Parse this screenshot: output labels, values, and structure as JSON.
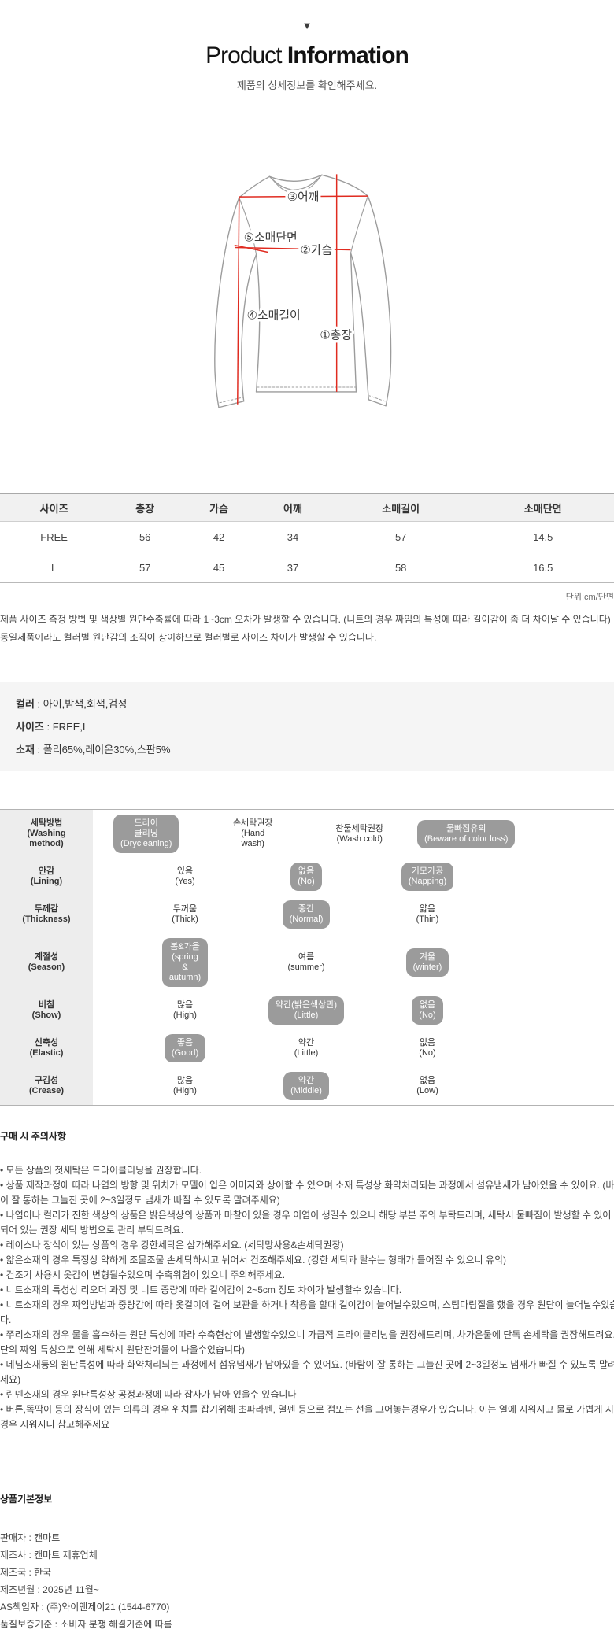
{
  "colors": {
    "measure_line_red": "#e02b20",
    "outline_gray": "#9c9c9c",
    "badge_gray": "#9b9b9b",
    "attr_panel_gray": "#f5f5f5",
    "care_label_gray": "#ededed",
    "table_header_gray": "#f1f1f1"
  },
  "header": {
    "arrow_icon": "▼",
    "title_light": "Product",
    "title_bold": "Information",
    "subtitle": "제품의 상세정보를 확인해주세요."
  },
  "diagram": {
    "labels": {
      "length": "①총장",
      "chest": "②가슴",
      "shoulder": "③어깨",
      "sleeve_length": "④소매길이",
      "sleeve_cuff": "⑤소매단면"
    }
  },
  "size_table": {
    "headers": [
      "사이즈",
      "총장",
      "가슴",
      "어깨",
      "소매길이",
      "소매단면"
    ],
    "rows": [
      [
        "FREE",
        "56",
        "42",
        "34",
        "57",
        "14.5"
      ],
      [
        "L",
        "57",
        "45",
        "37",
        "58",
        "16.5"
      ]
    ],
    "unit_note": "단위:cm/단면"
  },
  "size_notes": [
    "제품 사이즈 측정 방법 및 색상별 원단수축률에 따라 1~3cm 오차가 발생할 수 있습니다. (니트의 경우 짜임의 특성에 따라 길이감이 좀 더 차이날 수 있습니다)",
    "동일제품이라도 컬러별 원단감의 조직이 상이하므로 컬러별로 사이즈 차이가 발생할 수 있습니다."
  ],
  "product_attrs": {
    "sep": " : ",
    "color_label": "컬러",
    "color_value": "아이,밤색,회색,검정",
    "size_label": "사이즈",
    "size_value": "FREE,L",
    "fabric_label": "소재",
    "fabric_value": "폴리65%,레이온30%,스판5%"
  },
  "care_table": {
    "rows": [
      {
        "label": "세탁방법\n(Washing\nmethod)",
        "options": [
          {
            "text": "드라이\n클리닝\n(Drycleaning)",
            "selected": true
          },
          {
            "text": "손세탁권장\n(Hand\nwash)",
            "selected": false
          },
          {
            "text": "찬물세탁권장\n(Wash cold)",
            "selected": false
          },
          {
            "text": "물빠짐유의\n(Beware of color loss)",
            "selected": true
          }
        ]
      },
      {
        "label": "안감\n(Lining)",
        "options": [
          {
            "text": "있음\n(Yes)",
            "selected": false
          },
          {
            "text": "없음\n(No)",
            "selected": true
          },
          {
            "text": "기모가공\n(Napping)",
            "selected": true
          }
        ]
      },
      {
        "label": "두께감\n(Thickness)",
        "options": [
          {
            "text": "두꺼움\n(Thick)",
            "selected": false
          },
          {
            "text": "중간\n(Normal)",
            "selected": true
          },
          {
            "text": "얇음\n(Thin)",
            "selected": false
          }
        ]
      },
      {
        "label": "계절성\n(Season)",
        "options": [
          {
            "text": "봄&가을\n(spring\n&\nautumn)",
            "selected": true
          },
          {
            "text": "여름\n(summer)",
            "selected": false
          },
          {
            "text": "겨울\n(winter)",
            "selected": true
          }
        ]
      },
      {
        "label": "비침\n(Show)",
        "options": [
          {
            "text": "많음\n(High)",
            "selected": false
          },
          {
            "text": "약간(밝은색상만)\n(Little)",
            "selected": true
          },
          {
            "text": "없음\n(No)",
            "selected": true
          }
        ]
      },
      {
        "label": "신축성\n(Elastic)",
        "options": [
          {
            "text": "좋음\n(Good)",
            "selected": true
          },
          {
            "text": "약간\n(Little)",
            "selected": false
          },
          {
            "text": "없음\n(No)",
            "selected": false
          }
        ]
      },
      {
        "label": "구김성\n(Crease)",
        "options": [
          {
            "text": "많음\n(High)",
            "selected": false
          },
          {
            "text": "약간\n(Middle)",
            "selected": true
          },
          {
            "text": "없음\n(Low)",
            "selected": false
          }
        ]
      }
    ]
  },
  "purchase_notice": {
    "heading": "구매 시 주의사항",
    "bullet": "•",
    "items": [
      "모든 상품의 첫세탁은 드라이클리닝을 권장합니다.",
      "상품 제작과정에 따라 나염의 방향 및 위치가 모델이 입은 이미지와 상이할 수 있으며 소재 특성상 화약처리되는 과정에서 섬유냄새가 남아있을 수 있어요. (바람이 잘 통하는 그늘진 곳에 2~3일정도 냄새가 빠질 수 있도록 말려주세요)",
      "나염이나 컬러가 진한 색상의 상품은 밝은색상의 상품과 마찰이 있을 경우 이염이 생길수 있으니 해당 부분 주의 부탁드리며, 세탁시 물빠짐이 발생할 수 있어 기재되어 있는 권장 세탁 방법으로 관리 부탁드려요.",
      "레이스나 장식이 있는 상품의 경우 강한세탁은 삼가해주세요. (세탁망사용&손세탁권장)",
      "얇은소재의 경우 특정상 약하게 조물조물 손세탁하시고 뉘어서 건조해주세요. (강한 세탁과 탈수는 형태가 틀어질 수 있으니 유의)",
      "건조기 사용시 옷감이 변형될수있으며 수축위험이 있으니 주의해주세요.",
      "니트소재의 특성상 리오더 과정 및 니트 중량에 따라 길이감이 2~5cm 정도 차이가 발생할수 있습니다.",
      "니트소재의 경우 짜임방법과 중량감에 따라 옷걸이에 걸어 보관을 하거나 착용을 할때 길이감이 늘어날수있으며, 스팀다림질을 했을 경우 원단이 늘어날수있습니다.",
      "쭈리소재의 경우 물을 흡수하는 원단 특성에 따라 수축현상이 발생할수있으니 가급적 드라이클리닝을 권장해드리며, 차가운물에 단독 손세탁을 권장해드려요.(원단의 짜임 특성으로 인해 세탁시 원단잔여물이 나올수있습니다)",
      "데님소재등의 원단특성에 따라 화약처리되는 과정에서 섬유냄새가 남아있을 수 있어요. (바람이 잘 통하는 그늘진 곳에 2~3일정도 냄새가 빠질 수 있도록 말려주세요)",
      "린넨소재의 경우 원단특성상 공정과정에 따라 잡사가 남아 있을수 있습니다",
      "버튼,똑딱이 등의 장식이 있는 의류의 경우 위치를 잡기위해 초파라펜, 열펜 등으로 점또는 선을 그어놓는경우가 있습니다. 이는 열에 지워지고 물로 가볍게 지웠을경우 지워지니 참고해주세요"
    ]
  },
  "basic_info": {
    "heading": "상품기본정보",
    "items": [
      "판매자 : 캔마트",
      "제조사 : 캔마트 제휴업체",
      "제조국 : 한국",
      "제조년월 : 2025년 11월~",
      "AS책임자 : (주)와이앤제이21 (1544-6770)",
      "품질보증기준 : 소비자 분쟁 해결기준에 따름"
    ]
  }
}
